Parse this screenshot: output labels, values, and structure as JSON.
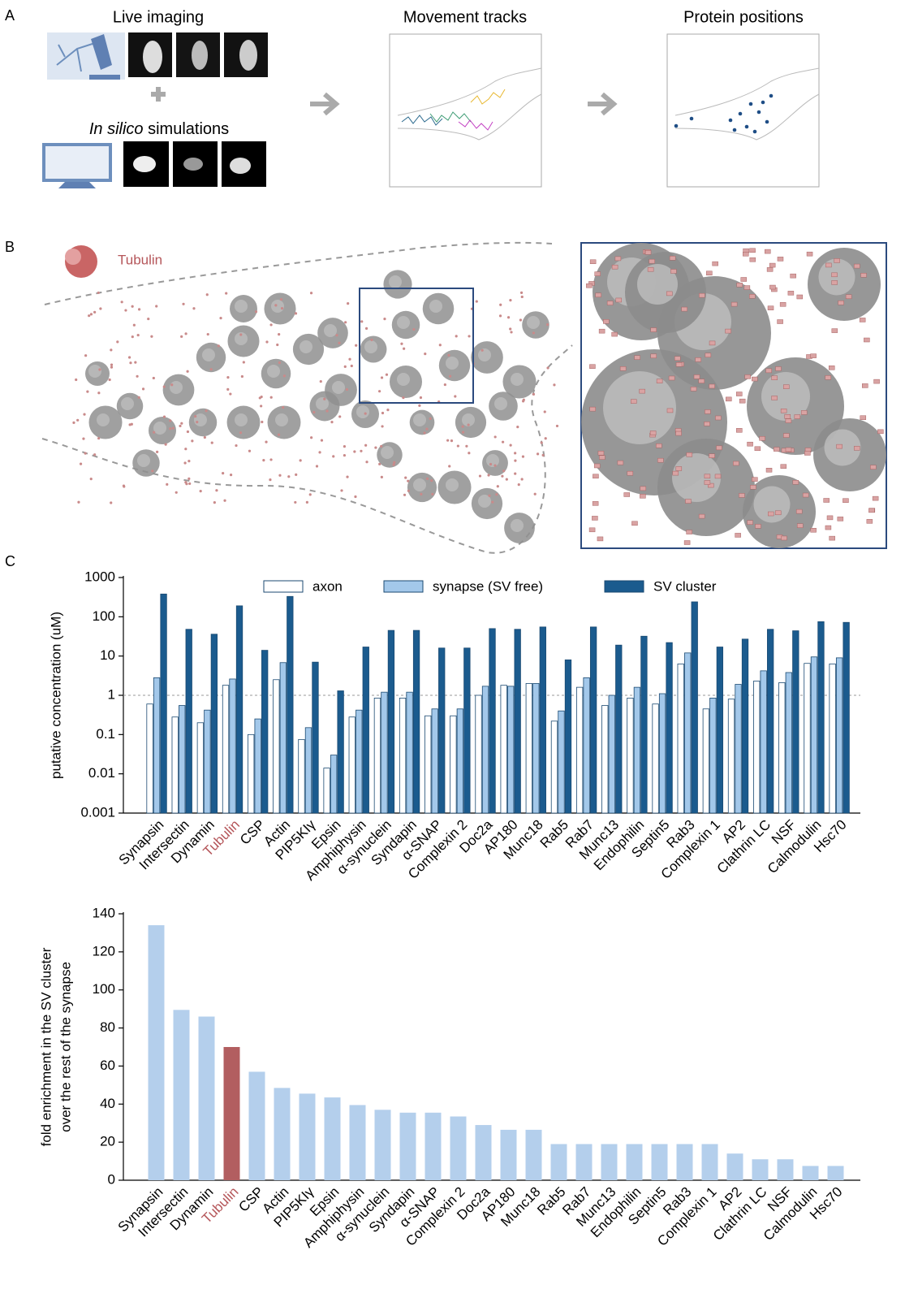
{
  "panels": {
    "A": {
      "label": "A",
      "live_imaging": "Live imaging",
      "in_silico": "In silico",
      "simulations": "simulations",
      "movement_tracks": "Movement tracks",
      "protein_positions": "Protein positions"
    },
    "B": {
      "label": "B",
      "legend": "Tubulin"
    },
    "C": {
      "label": "C"
    }
  },
  "chart_data": [
    {
      "type": "bar",
      "log": true,
      "legend": "top",
      "ylabel": "putative concentration (uM)",
      "categories": [
        "Synapsin",
        "Intersectin",
        "Dynamin",
        "Tubulin",
        "CSP",
        "Actin",
        "PIP5KIγ",
        "Epsin",
        "Amphiphysin",
        "α-synuclein",
        "Syndapin",
        "α-SNAP",
        "Complexin 2",
        "Doc2a",
        "AP180",
        "Munc18",
        "Rab5",
        "Rab7",
        "Munc13",
        "Endophilin",
        "Septin5",
        "Rab3",
        "Complexin 1",
        "AP2",
        "Clathrin LC",
        "NSF",
        "Calmodulin",
        "Hsc70"
      ],
      "label_colors": [
        "#000000",
        "#000000",
        "#000000",
        "#b5565a",
        "#000000",
        "#000000",
        "#000000",
        "#000000",
        "#000000",
        "#000000",
        "#000000",
        "#000000",
        "#000000",
        "#000000",
        "#000000",
        "#000000",
        "#000000",
        "#000000",
        "#000000",
        "#000000",
        "#000000",
        "#000000",
        "#000000",
        "#000000",
        "#000000",
        "#000000",
        "#000000",
        "#000000"
      ],
      "series": [
        {
          "name": "axon",
          "color": "#ffffff",
          "values": [
            0.6,
            0.28,
            0.2,
            1.8,
            0.1,
            2.5,
            0.075,
            0.014,
            0.28,
            0.85,
            0.85,
            0.3,
            0.3,
            1.0,
            1.8,
            2.0,
            0.22,
            1.6,
            0.55,
            0.85,
            0.6,
            6.3,
            0.45,
            0.8,
            2.3,
            2.1,
            6.5,
            6.3
          ]
        },
        {
          "name": "synapse (SV free)",
          "color": "#a3c8ea",
          "values": [
            2.8,
            0.55,
            0.42,
            2.6,
            0.25,
            6.8,
            0.15,
            0.03,
            0.42,
            1.2,
            1.2,
            0.45,
            0.45,
            1.7,
            1.7,
            2.0,
            0.4,
            2.8,
            1.0,
            1.6,
            1.1,
            12,
            0.85,
            1.9,
            4.2,
            3.8,
            9.5,
            9
          ]
        },
        {
          "name": "SV cluster",
          "color": "#1b5b8e",
          "values": [
            380,
            48,
            36,
            190,
            14,
            330,
            7,
            1.3,
            17,
            45,
            45,
            16,
            16,
            50,
            48,
            55,
            8,
            55,
            19,
            32,
            22,
            240,
            17,
            27,
            48,
            44,
            75,
            72
          ]
        }
      ],
      "edge_color": "#1b4a72",
      "hline": 1,
      "ylim": [
        0.001,
        1000
      ],
      "yticks": [
        1000,
        100,
        10,
        1,
        0.1,
        0.01,
        0.001
      ]
    },
    {
      "type": "bar",
      "ylabel": [
        "fold enrichment in the SV cluster",
        "over the rest of the synapse"
      ],
      "categories": [
        "Synapsin",
        "Intersectin",
        "Dynamin",
        "Tubulin",
        "CSP",
        "Actin",
        "PIP5KIγ",
        "Epsin",
        "Amphiphysin",
        "α-synuclein",
        "Syndapin",
        "α-SNAP",
        "Complexin 2",
        "Doc2a",
        "AP180",
        "Munc18",
        "Rab5",
        "Rab7",
        "Munc13",
        "Endophilin",
        "Septin5",
        "Rab3",
        "Complexin 1",
        "AP2",
        "Clathrin LC",
        "NSF",
        "Calmodulin",
        "Hsc70"
      ],
      "values": [
        134,
        89.5,
        86,
        70,
        57,
        48.5,
        45.5,
        43.5,
        39.5,
        37,
        35.5,
        35.5,
        33.5,
        29,
        26.5,
        26.5,
        19,
        19,
        19,
        19,
        19,
        19,
        19,
        14,
        11,
        11,
        7.5,
        7.5
      ],
      "colors": [
        "#b4cfec",
        "#b4cfec",
        "#b4cfec",
        "#b25e60",
        "#b4cfec",
        "#b4cfec",
        "#b4cfec",
        "#b4cfec",
        "#b4cfec",
        "#b4cfec",
        "#b4cfec",
        "#b4cfec",
        "#b4cfec",
        "#b4cfec",
        "#b4cfec",
        "#b4cfec",
        "#b4cfec",
        "#b4cfec",
        "#b4cfec",
        "#b4cfec",
        "#b4cfec",
        "#b4cfec",
        "#b4cfec",
        "#b4cfec",
        "#b4cfec",
        "#b4cfec",
        "#b4cfec",
        "#b4cfec"
      ],
      "label_colors": [
        "#000000",
        "#000000",
        "#000000",
        "#b5565a",
        "#000000",
        "#000000",
        "#000000",
        "#000000",
        "#000000",
        "#000000",
        "#000000",
        "#000000",
        "#000000",
        "#000000",
        "#000000",
        "#000000",
        "#000000",
        "#000000",
        "#000000",
        "#000000",
        "#000000",
        "#000000",
        "#000000",
        "#000000",
        "#000000",
        "#000000",
        "#000000",
        "#000000"
      ],
      "ylim": [
        0,
        140
      ],
      "yticks": [
        0,
        20,
        40,
        60,
        80,
        100,
        120,
        140
      ]
    }
  ]
}
